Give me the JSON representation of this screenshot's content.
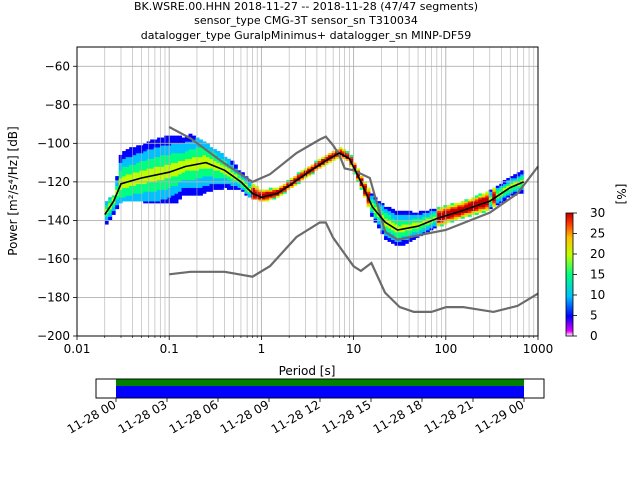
{
  "title_lines": [
    "BK.WSRE.00.HHN   2018-11-27 -- 2018-11-28  (47/47 segments)",
    "sensor_type CMG-3T sensor_sn T310034",
    "datalogger_type GuralpMinimus+ datalogger_sn MINP-DF59"
  ],
  "chart_data": {
    "type": "heatmap",
    "x_scale": "log",
    "xlim": [
      0.01,
      1000
    ],
    "ylim": [
      -200,
      -50
    ],
    "xlabel": "Period [s]",
    "ylabel": "Power [m²/s⁴/Hz] [dB]",
    "x_ticks": [
      {
        "value": 0.01,
        "label": "0.01"
      },
      {
        "value": 0.1,
        "label": "0.1"
      },
      {
        "value": 1,
        "label": "1"
      },
      {
        "value": 10,
        "label": "10"
      },
      {
        "value": 100,
        "label": "100"
      },
      {
        "value": 1000,
        "label": "1000"
      }
    ],
    "y_ticks": [
      -60,
      -80,
      -100,
      -120,
      -140,
      -160,
      -180,
      -200
    ],
    "grid": true,
    "colorbar": {
      "label": "[%]",
      "ticks": [
        0,
        5,
        10,
        15,
        20,
        25,
        30
      ],
      "range": [
        0,
        30
      ],
      "colors": [
        "#ffffff",
        "#e000ff",
        "#0000ff",
        "#00c0ff",
        "#00ff80",
        "#c0ff00",
        "#ffc000",
        "#ff3000",
        "#c00000"
      ]
    },
    "nhnm": [
      [
        0.1,
        -91.5
      ],
      [
        0.17,
        -97.4
      ],
      [
        0.4,
        -110.5
      ],
      [
        0.8,
        -120
      ],
      [
        1.24,
        -116
      ],
      [
        2.4,
        -105
      ],
      [
        4.3,
        -98
      ],
      [
        5,
        -96.5
      ],
      [
        6,
        -101
      ],
      [
        7.0,
        -106
      ],
      [
        8,
        -113
      ],
      [
        10,
        -114
      ],
      [
        15,
        -118
      ],
      [
        22,
        -146
      ],
      [
        30,
        -150
      ],
      [
        60,
        -147
      ],
      [
        100,
        -145
      ],
      [
        300,
        -136
      ],
      [
        600,
        -126
      ],
      [
        1000,
        -112
      ]
    ],
    "nlnm": [
      [
        0.1,
        -168
      ],
      [
        0.17,
        -166.7
      ],
      [
        0.4,
        -166.7
      ],
      [
        0.8,
        -169.2
      ],
      [
        1.24,
        -163.7
      ],
      [
        2.4,
        -148.6
      ],
      [
        4.3,
        -141.1
      ],
      [
        5,
        -141.1
      ],
      [
        6,
        -149
      ],
      [
        10,
        -163.8
      ],
      [
        12,
        -166.2
      ],
      [
        15.6,
        -162.1
      ],
      [
        21.9,
        -177.5
      ],
      [
        31.6,
        -185
      ],
      [
        45,
        -187.5
      ],
      [
        70,
        -187.5
      ],
      [
        101,
        -185
      ],
      [
        154,
        -185
      ],
      [
        328,
        -187.5
      ],
      [
        600,
        -184.4
      ],
      [
        1000,
        -178
      ]
    ],
    "mode_curve": [
      [
        0.02,
        -137
      ],
      [
        0.025,
        -130
      ],
      [
        0.03,
        -121
      ],
      [
        0.05,
        -118
      ],
      [
        0.1,
        -115
      ],
      [
        0.15,
        -112
      ],
      [
        0.25,
        -110
      ],
      [
        0.4,
        -114
      ],
      [
        0.6,
        -120
      ],
      [
        0.8,
        -126
      ],
      [
        1.0,
        -128
      ],
      [
        1.5,
        -126
      ],
      [
        2,
        -122
      ],
      [
        3,
        -116
      ],
      [
        5,
        -109
      ],
      [
        7,
        -105
      ],
      [
        9,
        -108
      ],
      [
        12,
        -120
      ],
      [
        16,
        -133
      ],
      [
        22,
        -141
      ],
      [
        30,
        -145
      ],
      [
        50,
        -143
      ],
      [
        80,
        -139
      ],
      [
        150,
        -135
      ],
      [
        300,
        -130
      ],
      [
        500,
        -123
      ],
      [
        700,
        -120
      ]
    ],
    "spread_upper": [
      [
        0.02,
        -132
      ],
      [
        0.025,
        -128
      ],
      [
        0.03,
        -102
      ],
      [
        0.05,
        -98
      ],
      [
        0.08,
        -94
      ],
      [
        0.12,
        -93
      ],
      [
        0.2,
        -98
      ],
      [
        0.35,
        -106
      ],
      [
        0.6,
        -114
      ],
      [
        0.8,
        -120
      ],
      [
        1.0,
        -124
      ],
      [
        1.5,
        -123
      ],
      [
        2,
        -119
      ],
      [
        3,
        -114
      ],
      [
        5,
        -107
      ],
      [
        7,
        -103.5
      ],
      [
        9,
        -106
      ],
      [
        12,
        -117
      ],
      [
        16,
        -128
      ],
      [
        22,
        -134
      ],
      [
        30,
        -135
      ],
      [
        50,
        -135
      ],
      [
        80,
        -133
      ],
      [
        150,
        -130
      ],
      [
        300,
        -124
      ],
      [
        500,
        -117
      ],
      [
        700,
        -114
      ]
    ],
    "spread_lower": [
      [
        0.02,
        -145
      ],
      [
        0.025,
        -139
      ],
      [
        0.03,
        -130
      ],
      [
        0.05,
        -130
      ],
      [
        0.08,
        -131
      ],
      [
        0.12,
        -130
      ],
      [
        0.2,
        -131
      ],
      [
        0.35,
        -126
      ],
      [
        0.6,
        -125
      ],
      [
        0.8,
        -128
      ],
      [
        1.0,
        -130
      ],
      [
        1.5,
        -128
      ],
      [
        2,
        -125
      ],
      [
        3,
        -119
      ],
      [
        5,
        -111
      ],
      [
        7,
        -107
      ],
      [
        9,
        -111
      ],
      [
        12,
        -124
      ],
      [
        16,
        -140
      ],
      [
        22,
        -152
      ],
      [
        30,
        -156
      ],
      [
        50,
        -151
      ],
      [
        80,
        -145
      ],
      [
        150,
        -140
      ],
      [
        300,
        -135
      ],
      [
        500,
        -128
      ],
      [
        700,
        -127
      ]
    ],
    "timeline": {
      "x_ticks": [
        "11-28 00",
        "11-28 03",
        "11-28 06",
        "11-28 09",
        "11-28 12",
        "11-28 15",
        "11-28 18",
        "11-28 21",
        "11-29 00"
      ],
      "coverage_start_hours": 0,
      "coverage_end_hours": 24,
      "colors": {
        "data": "#0000ff",
        "gaps": "#008000"
      }
    }
  }
}
